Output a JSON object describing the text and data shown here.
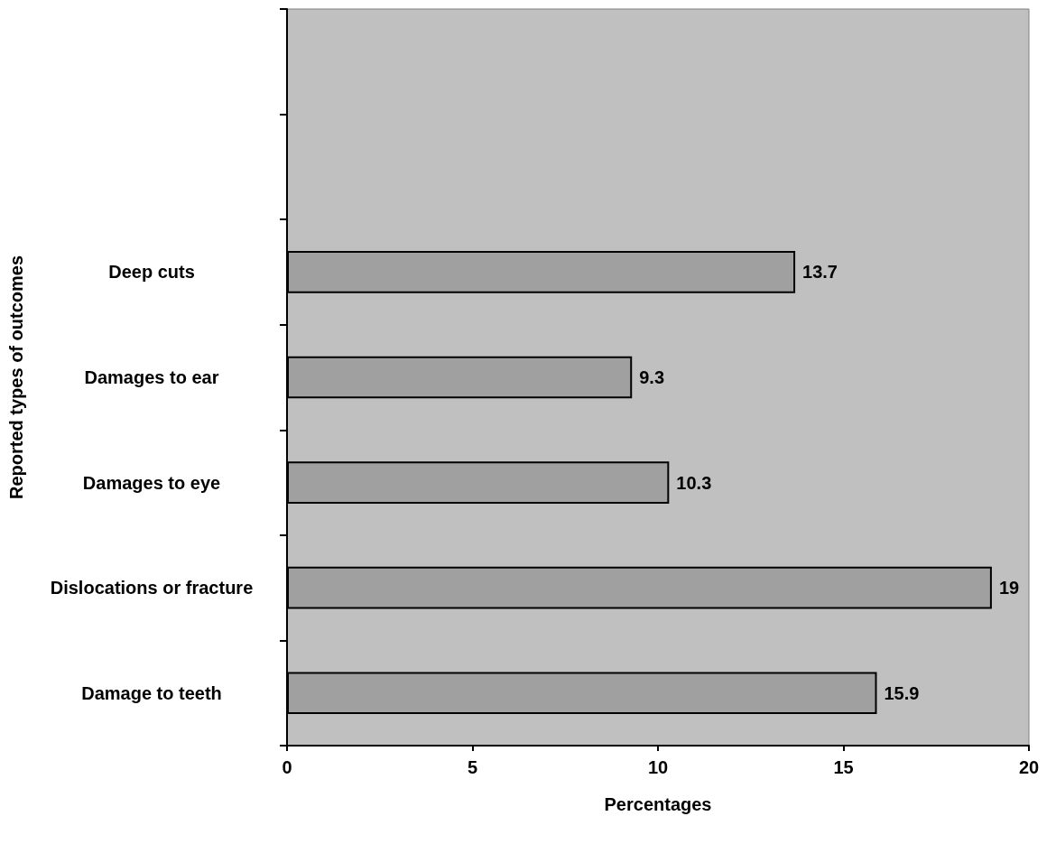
{
  "chart_data": {
    "type": "bar",
    "orientation": "horizontal",
    "xlabel": "Percentages",
    "ylabel": "Reported types of outcomes",
    "categories": [
      null,
      null,
      "Deep cuts",
      "Damages to ear",
      "Damages to eye",
      "Dislocations or fracture",
      "Damage to teeth"
    ],
    "values": [
      null,
      null,
      13.7,
      9.3,
      10.3,
      19,
      15.9
    ],
    "color": "#a0a0a0",
    "xlim": [
      0,
      20
    ],
    "xticks": [
      0,
      5,
      10,
      15,
      20
    ],
    "data_labels": true
  }
}
